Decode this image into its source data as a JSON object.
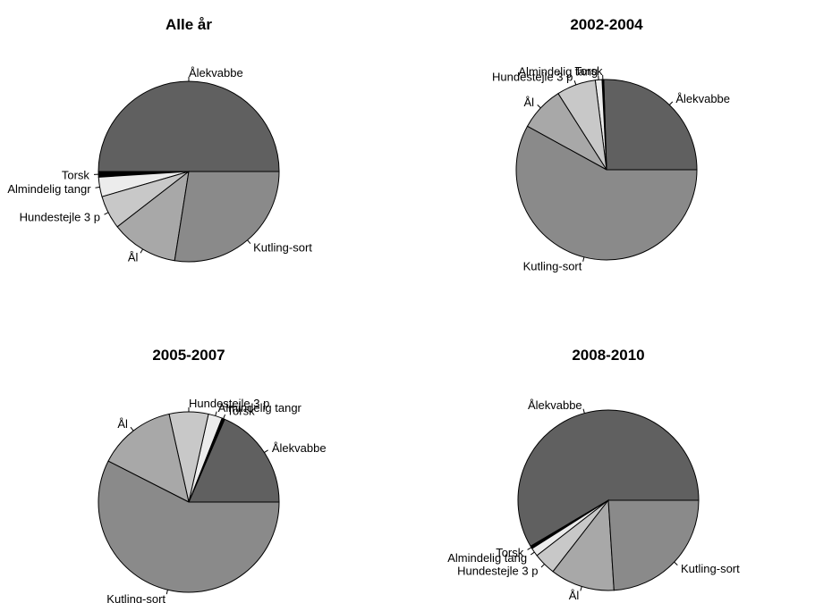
{
  "chart_data": [
    {
      "type": "pie",
      "title": "Alle år",
      "categories": [
        "Ålekvabbe",
        "Torsk",
        "Almindelig tangr",
        "Hundestejle 3 p",
        "Ål",
        "Kutling-sort"
      ],
      "values": [
        50,
        1,
        3.5,
        6,
        12,
        27.5
      ],
      "colors": [
        "#606060",
        "#000000",
        "#ececec",
        "#c8c8c8",
        "#a8a8a8",
        "#8a8a8a"
      ]
    },
    {
      "type": "pie",
      "title": "2002-2004",
      "categories": [
        "Ålekvabbe",
        "Torsk",
        "Almindelig tang",
        "Hundestejle 3 p",
        "Ål",
        "Kutling-sort"
      ],
      "values": [
        25.5,
        0.3,
        1.2,
        7,
        8,
        58
      ],
      "colors": [
        "#606060",
        "#000000",
        "#ececec",
        "#c8c8c8",
        "#a8a8a8",
        "#8a8a8a"
      ]
    },
    {
      "type": "pie",
      "title": "2005-2007",
      "categories": [
        "Ålekvabbe",
        "Torsk",
        "Almindelig tangr",
        "Hundestejle 3 p",
        "Ål",
        "Kutling-sort"
      ],
      "values": [
        18.5,
        0.5,
        2.5,
        7,
        14,
        57.5
      ],
      "colors": [
        "#606060",
        "#000000",
        "#ececec",
        "#c8c8c8",
        "#a8a8a8",
        "#8a8a8a"
      ]
    },
    {
      "type": "pie",
      "title": "2008-2010",
      "categories": [
        "Ålekvabbe",
        "Torsk",
        "Almindelig tang",
        "Hundestejle 3 p",
        "Ål",
        "Kutling-sort"
      ],
      "values": [
        58.5,
        0.5,
        1.5,
        4,
        11.5,
        24
      ],
      "colors": [
        "#606060",
        "#000000",
        "#ececec",
        "#c8c8c8",
        "#a8a8a8",
        "#8a8a8a"
      ]
    }
  ]
}
